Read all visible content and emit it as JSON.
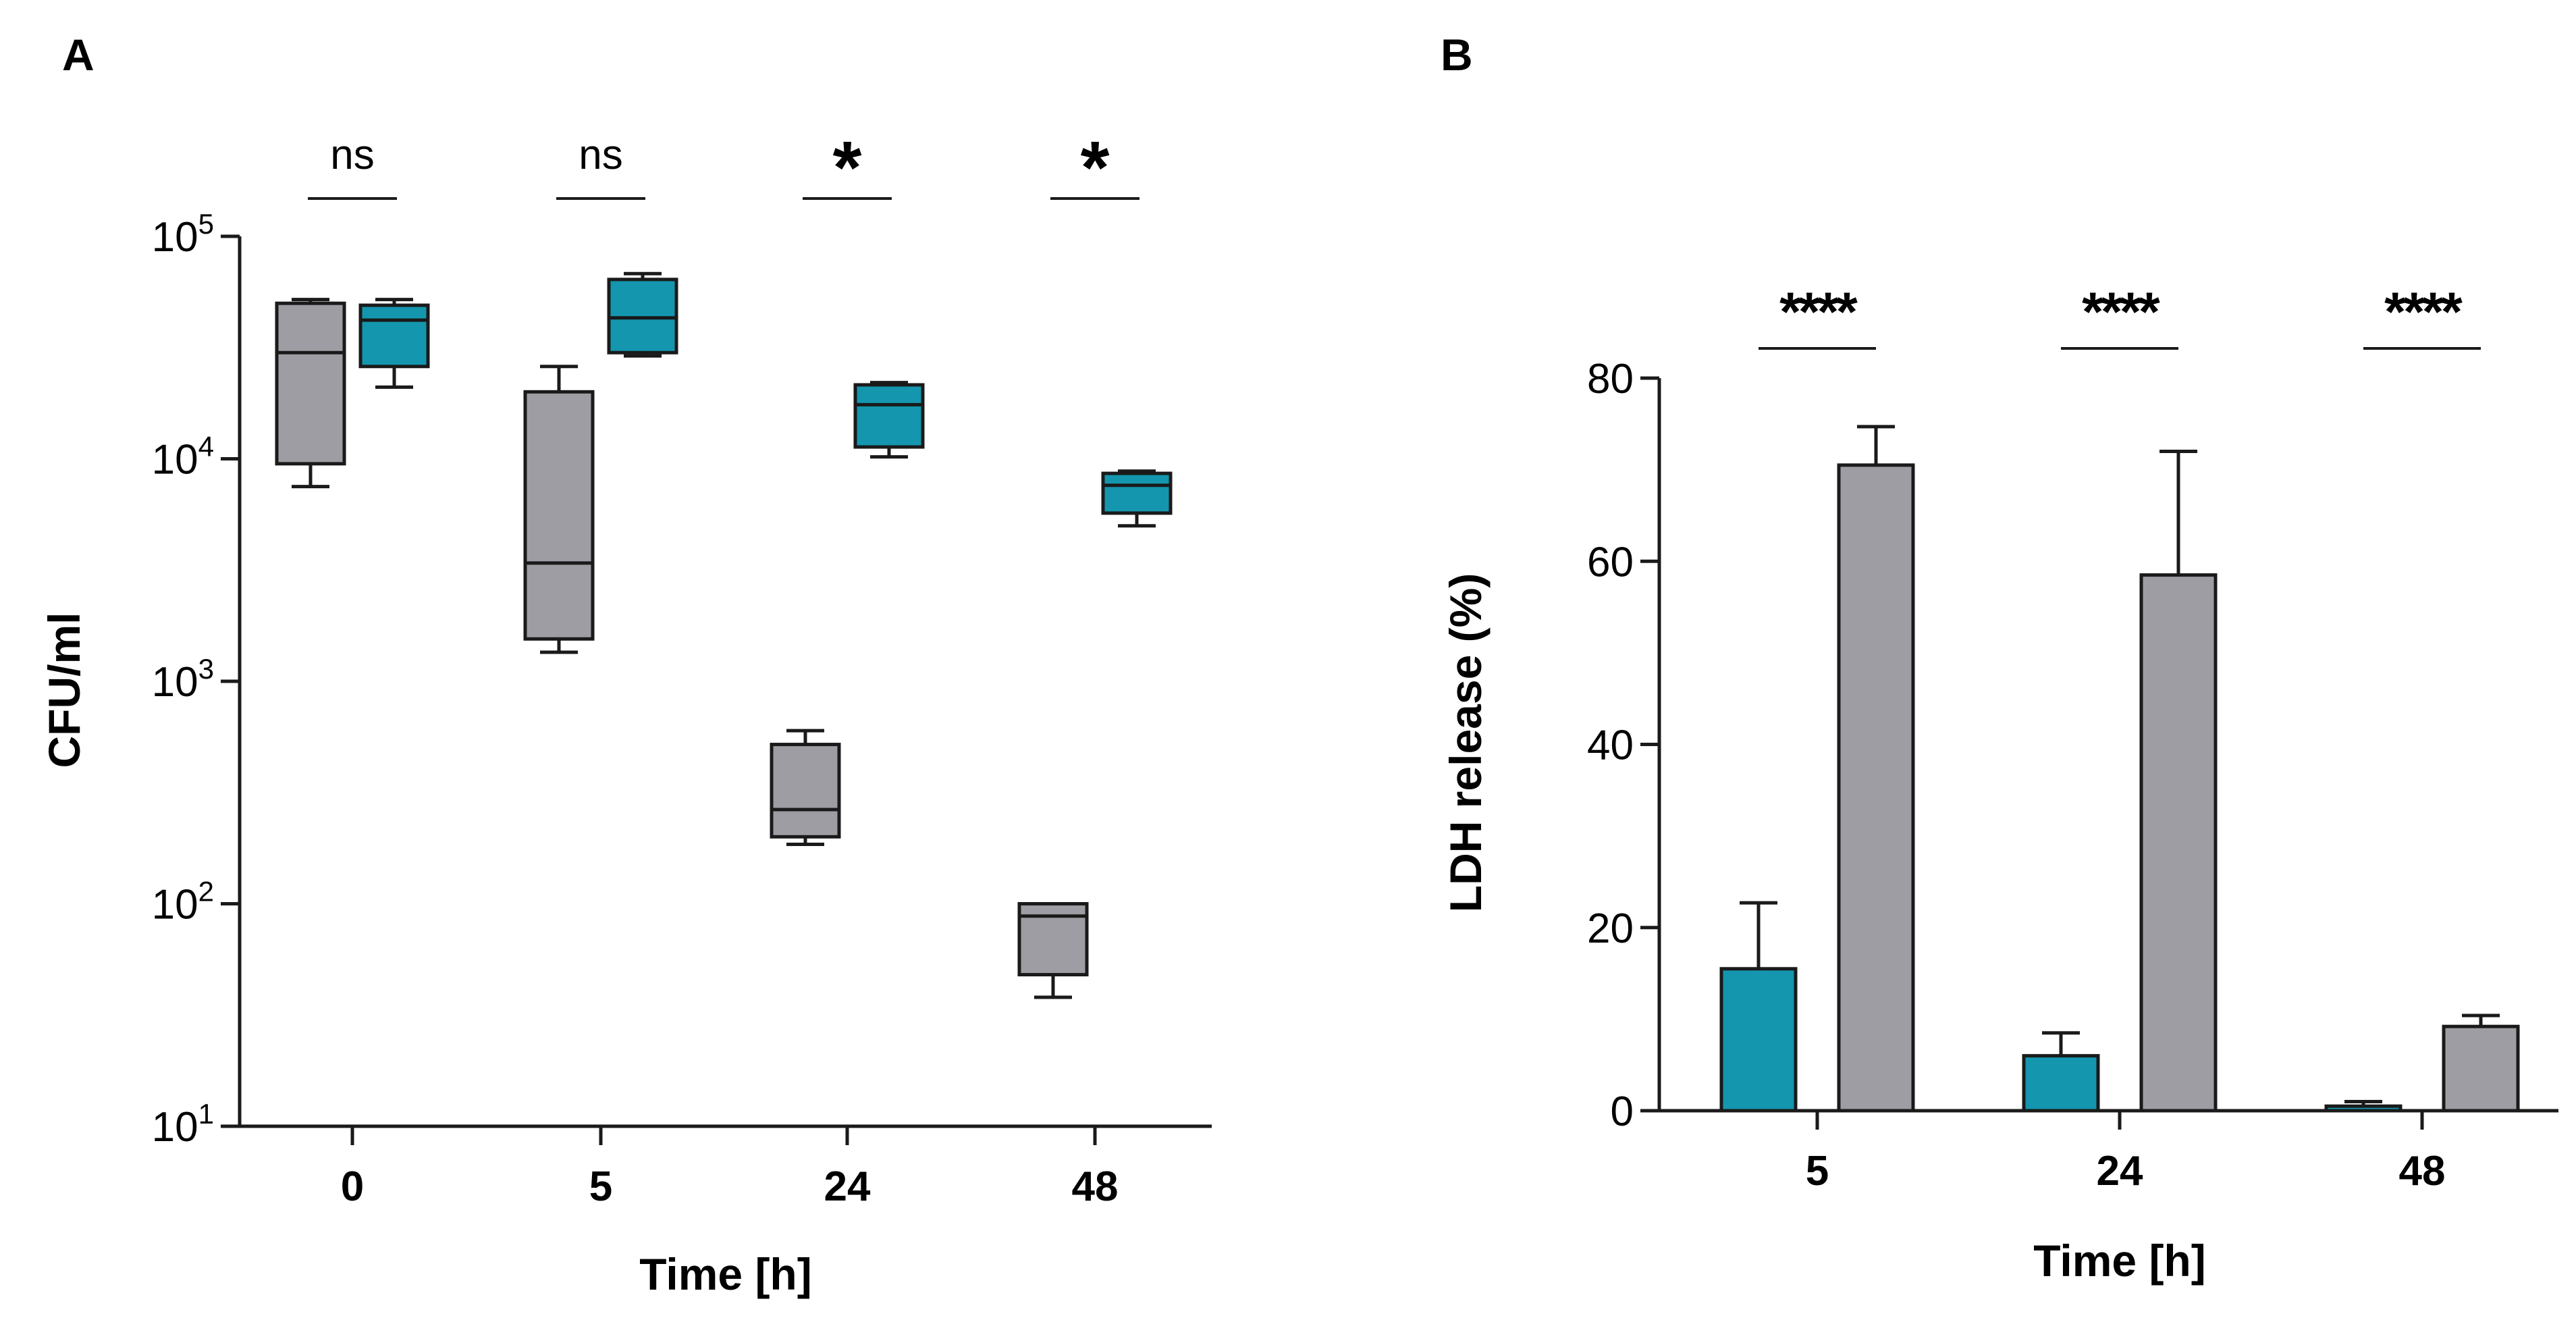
{
  "colors": {
    "control": "#9e9da3",
    "treatment": "#1496ae",
    "stroke": "#1a1a1a"
  },
  "chart_data": [
    {
      "panel": "A",
      "type": "box",
      "xlabel": "Time [h]",
      "ylabel": "CFU/ml",
      "yscale": "log",
      "ylim": [
        10,
        100000
      ],
      "yticks": [
        {
          "base": "10",
          "exp": "1",
          "value": 10
        },
        {
          "base": "10",
          "exp": "2",
          "value": 100
        },
        {
          "base": "10",
          "exp": "3",
          "value": 1000
        },
        {
          "base": "10",
          "exp": "4",
          "value": 10000
        },
        {
          "base": "10",
          "exp": "5",
          "value": 100000
        }
      ],
      "categories": [
        "0",
        "5",
        "24",
        "48"
      ],
      "series": [
        {
          "name": "grey",
          "color_key": "control",
          "boxes": [
            {
              "min": 7500,
              "q1": 9500,
              "median": 30000,
              "q3": 50000,
              "max": 52000
            },
            {
              "min": 1350,
              "q1": 1550,
              "median": 3400,
              "q3": 20000,
              "max": 26000
            },
            {
              "min": 185,
              "q1": 200,
              "median": 265,
              "q3": 520,
              "max": 600
            },
            {
              "min": 38,
              "q1": 48,
              "median": 88,
              "q3": 100,
              "max": 100
            }
          ]
        },
        {
          "name": "teal",
          "color_key": "treatment",
          "boxes": [
            {
              "min": 21000,
              "q1": 26000,
              "median": 42000,
              "q3": 49000,
              "max": 52000
            },
            {
              "min": 29000,
              "q1": 30000,
              "median": 43000,
              "q3": 64000,
              "max": 68000
            },
            {
              "min": 10200,
              "q1": 11300,
              "median": 17500,
              "q3": 21500,
              "max": 22000
            },
            {
              "min": 5000,
              "q1": 5700,
              "median": 7600,
              "q3": 8600,
              "max": 8800
            }
          ]
        }
      ],
      "significance": [
        "ns",
        "ns",
        "*",
        "*"
      ]
    },
    {
      "panel": "B",
      "type": "bar",
      "xlabel": "Time [h]",
      "ylabel": "LDH release (%)",
      "ylim": [
        0,
        80
      ],
      "yticks": [
        "0",
        "20",
        "40",
        "60",
        "80"
      ],
      "categories": [
        "5",
        "24",
        "48"
      ],
      "series": [
        {
          "name": "teal",
          "color_key": "treatment",
          "values": [
            15.5,
            6.0,
            0.5
          ],
          "errors": [
            7.2,
            2.5,
            0.5
          ]
        },
        {
          "name": "grey",
          "color_key": "control",
          "values": [
            70.5,
            58.5,
            9.2
          ],
          "errors": [
            4.2,
            13.5,
            1.2
          ]
        }
      ],
      "significance": [
        "****",
        "****",
        "****"
      ]
    }
  ]
}
